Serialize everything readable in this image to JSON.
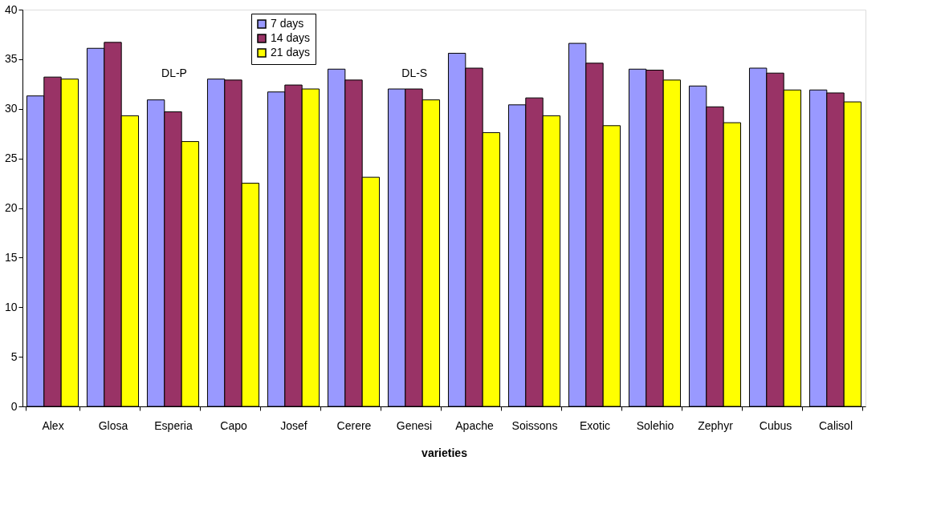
{
  "chart_data": {
    "type": "bar",
    "xlabel": "varieties",
    "categories": [
      "Alex",
      "Glosa",
      "Esperia",
      "Capo",
      "Josef",
      "Cerere",
      "Genesi",
      "Apache",
      "Soissons",
      "Exotic",
      "Solehio",
      "Zephyr",
      "Cubus",
      "Calisol"
    ],
    "series": [
      {
        "name": "7 days",
        "color": "#9999ff",
        "values": [
          31.3,
          36.1,
          30.9,
          33.0,
          31.7,
          34.0,
          32.0,
          35.6,
          30.4,
          36.6,
          34.0,
          32.3,
          34.1,
          31.9
        ]
      },
      {
        "name": "14 days",
        "color": "#993366",
        "values": [
          33.2,
          36.7,
          29.7,
          32.9,
          32.4,
          32.9,
          32.0,
          34.1,
          31.1,
          34.6,
          33.9,
          30.2,
          33.6,
          31.6
        ]
      },
      {
        "name": "21 days",
        "color": "#ffff00",
        "values": [
          33.0,
          29.3,
          26.7,
          22.5,
          32.0,
          23.1,
          30.9,
          27.6,
          29.3,
          28.3,
          32.9,
          28.6,
          31.9,
          30.7
        ]
      }
    ],
    "ylim": [
      0,
      40
    ],
    "yticks": [
      0,
      5,
      10,
      15,
      20,
      25,
      30,
      35,
      40
    ],
    "annotations": [
      "DL-P",
      "DL-S"
    ],
    "grid": false,
    "legend": "top"
  }
}
